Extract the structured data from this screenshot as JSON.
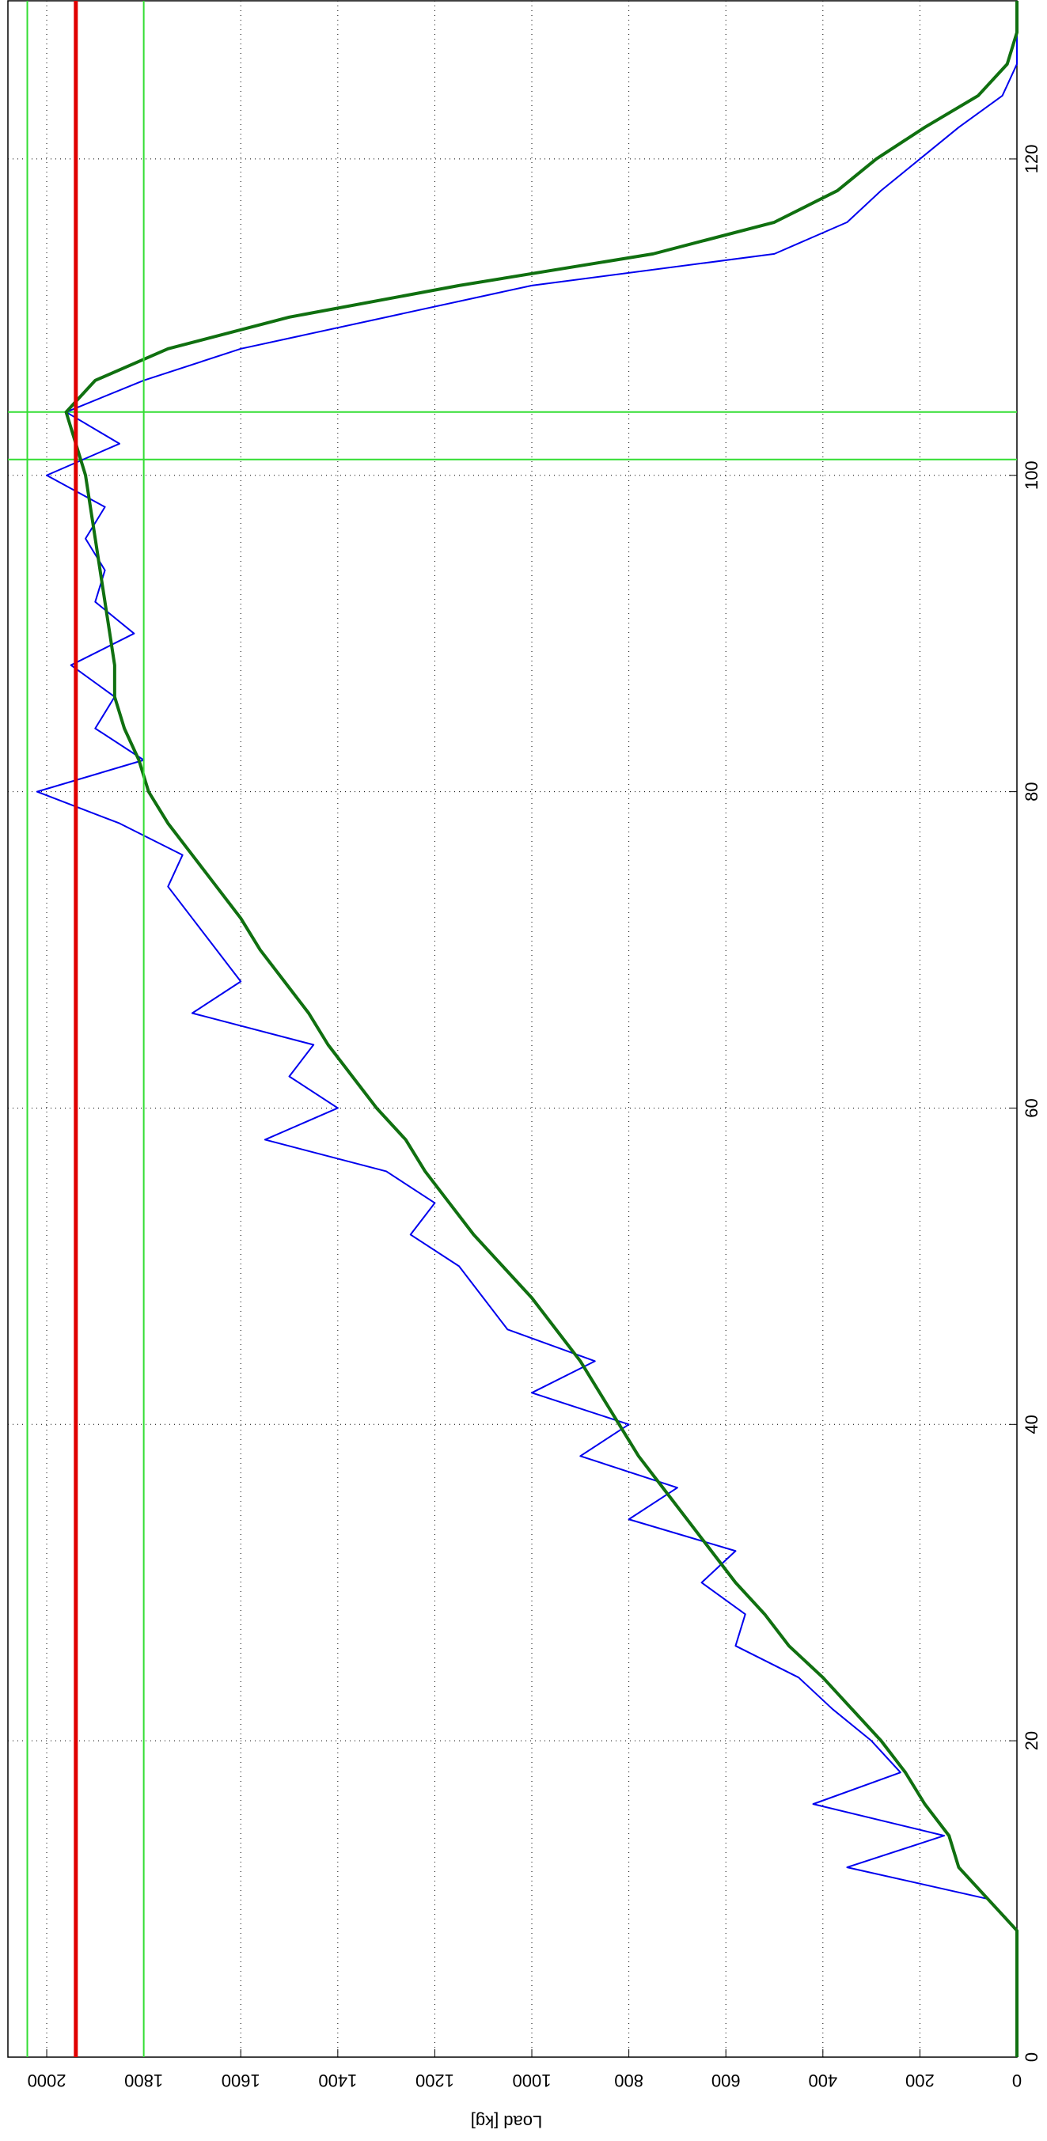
{
  "chart_data": {
    "type": "line",
    "orientation": "rotated",
    "y_label": "Load [kg]",
    "x": [
      0,
      2,
      4,
      6,
      8,
      10,
      12,
      14,
      16,
      18,
      20,
      22,
      24,
      26,
      28,
      30,
      32,
      34,
      36,
      38,
      40,
      42,
      44,
      46,
      48,
      50,
      52,
      54,
      56,
      58,
      60,
      62,
      64,
      66,
      68,
      70,
      72,
      74,
      76,
      78,
      80,
      82,
      84,
      86,
      88,
      90,
      92,
      94,
      96,
      98,
      100,
      102,
      104,
      106,
      108,
      110,
      112,
      114,
      116,
      118,
      120,
      122,
      124,
      126,
      128,
      130
    ],
    "series": [
      {
        "color": "#0000ee",
        "width": 2,
        "values": [
          0,
          0,
          0,
          0,
          0,
          60,
          350,
          150,
          420,
          240,
          300,
          380,
          450,
          580,
          560,
          650,
          580,
          800,
          700,
          900,
          800,
          1000,
          870,
          1050,
          1100,
          1150,
          1250,
          1200,
          1300,
          1550,
          1400,
          1500,
          1450,
          1700,
          1600,
          1650,
          1700,
          1750,
          1720,
          1850,
          2020,
          1800,
          1900,
          1860,
          1950,
          1820,
          1900,
          1880,
          1920,
          1880,
          2000,
          1850,
          1960,
          1800,
          1600,
          1300,
          1000,
          500,
          350,
          280,
          200,
          120,
          30,
          0,
          0,
          0
        ]
      },
      {
        "color": "#107010",
        "width": 4,
        "values": [
          0,
          0,
          0,
          0,
          0,
          60,
          120,
          140,
          190,
          230,
          280,
          340,
          400,
          470,
          520,
          580,
          630,
          680,
          730,
          780,
          820,
          860,
          900,
          950,
          1000,
          1060,
          1120,
          1170,
          1220,
          1260,
          1320,
          1370,
          1420,
          1460,
          1510,
          1560,
          1600,
          1650,
          1700,
          1750,
          1790,
          1810,
          1840,
          1860,
          1860,
          1870,
          1880,
          1890,
          1900,
          1910,
          1920,
          1940,
          1960,
          1900,
          1750,
          1500,
          1150,
          750,
          500,
          370,
          290,
          190,
          80,
          20,
          0,
          0
        ]
      }
    ],
    "load_refs": [
      {
        "value": 1940,
        "color": "#e00000",
        "width": 5
      },
      {
        "value": 2040,
        "color": "#33dd33",
        "width": 2
      },
      {
        "value": 1800,
        "color": "#33dd33",
        "width": 2
      }
    ],
    "x_refs": [
      {
        "value": 101,
        "color": "#33dd33",
        "width": 2
      },
      {
        "value": 104,
        "color": "#33dd33",
        "width": 2
      }
    ],
    "xlim": [
      0,
      130
    ],
    "xticks": [
      0,
      20,
      40,
      60,
      80,
      100,
      120
    ],
    "ylim": [
      0,
      2080
    ],
    "yticks": [
      0,
      200,
      400,
      600,
      800,
      1000,
      1200,
      1400,
      1600,
      1800,
      2000
    ],
    "grid": true
  }
}
